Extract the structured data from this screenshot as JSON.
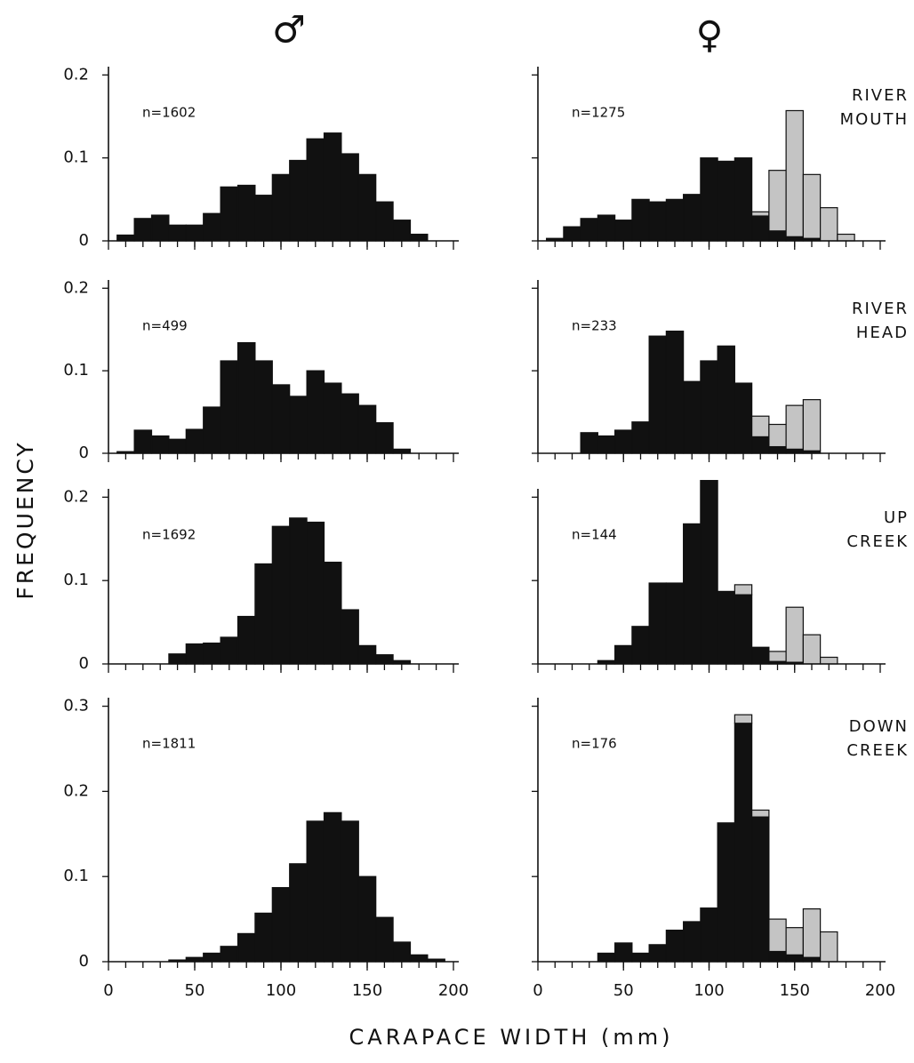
{
  "column_headers": [
    "♂",
    "♀"
  ],
  "row_labels": [
    [
      "RIVER",
      "MOUTH"
    ],
    [
      "RIVER",
      "HEAD"
    ],
    [
      "UP",
      "CREEK"
    ],
    [
      "DOWN",
      "CREEK"
    ]
  ],
  "y_label": "FREQUENCY",
  "x_label": "CARAPACE WIDTH (mm)",
  "chart_data": [
    {
      "type": "histogram",
      "annotation": "n=1602",
      "bins": [
        5,
        15,
        25,
        35,
        45,
        55,
        65,
        75,
        85,
        95,
        105,
        115,
        125,
        135,
        145,
        155,
        165,
        175,
        185
      ],
      "series": [
        {
          "color": "#111111",
          "values": [
            0.007,
            0.027,
            0.031,
            0.019,
            0.019,
            0.033,
            0.065,
            0.067,
            0.055,
            0.08,
            0.097,
            0.123,
            0.13,
            0.105,
            0.08,
            0.047,
            0.025,
            0.008
          ]
        }
      ],
      "xlim": [
        0,
        200
      ],
      "xticks": [
        0,
        50,
        100,
        150,
        200
      ],
      "ylim": [
        0,
        0.21
      ],
      "yticks": [
        0,
        0.1,
        0.2
      ]
    },
    {
      "type": "histogram",
      "annotation": "n=1275",
      "bins": [
        5,
        15,
        25,
        35,
        45,
        55,
        65,
        75,
        85,
        95,
        105,
        115,
        125,
        135,
        145,
        155,
        165,
        175,
        185
      ],
      "series": [
        {
          "color": "#111111",
          "values": [
            0.003,
            0.017,
            0.027,
            0.031,
            0.025,
            0.05,
            0.047,
            0.05,
            0.056,
            0.1,
            0.096,
            0.1,
            0.03,
            0.012,
            0.005,
            0.003,
            0,
            0
          ]
        },
        {
          "color": "#c4c4c4",
          "values": [
            0,
            0,
            0,
            0,
            0,
            0,
            0,
            0,
            0,
            0,
            0,
            0,
            0.005,
            0.073,
            0.152,
            0.077,
            0.04,
            0.008
          ]
        }
      ],
      "xlim": [
        0,
        200
      ],
      "xticks": [
        0,
        50,
        100,
        150,
        200
      ],
      "ylim": [
        0,
        0.21
      ],
      "yticks": [
        0,
        0.1,
        0.2
      ]
    },
    {
      "type": "histogram",
      "annotation": "n=499",
      "bins": [
        5,
        15,
        25,
        35,
        45,
        55,
        65,
        75,
        85,
        95,
        105,
        115,
        125,
        135,
        145,
        155,
        165,
        175
      ],
      "series": [
        {
          "color": "#111111",
          "values": [
            0.002,
            0.028,
            0.021,
            0.017,
            0.029,
            0.056,
            0.112,
            0.134,
            0.112,
            0.083,
            0.069,
            0.1,
            0.085,
            0.072,
            0.058,
            0.037,
            0.005
          ]
        }
      ],
      "xlim": [
        0,
        200
      ],
      "xticks": [
        0,
        50,
        100,
        150,
        200
      ],
      "ylim": [
        0,
        0.21
      ],
      "yticks": [
        0,
        0.1,
        0.2
      ]
    },
    {
      "type": "histogram",
      "annotation": "n=233",
      "bins": [
        25,
        35,
        45,
        55,
        65,
        75,
        85,
        95,
        105,
        115,
        125,
        135,
        145,
        155,
        165
      ],
      "series": [
        {
          "color": "#111111",
          "values": [
            0.025,
            0.021,
            0.028,
            0.038,
            0.142,
            0.148,
            0.087,
            0.112,
            0.13,
            0.085,
            0.02,
            0.008,
            0.005,
            0.003
          ]
        },
        {
          "color": "#c4c4c4",
          "values": [
            0,
            0,
            0,
            0,
            0,
            0,
            0,
            0,
            0,
            0,
            0.025,
            0.027,
            0.053,
            0.062
          ]
        }
      ],
      "xlim": [
        0,
        200
      ],
      "xticks": [
        0,
        50,
        100,
        150,
        200
      ],
      "ylim": [
        0,
        0.21
      ],
      "yticks": [
        0,
        0.1,
        0.2
      ]
    },
    {
      "type": "histogram",
      "annotation": "n=1692",
      "bins": [
        35,
        45,
        55,
        65,
        75,
        85,
        95,
        105,
        115,
        125,
        135,
        145,
        155,
        165,
        175
      ],
      "series": [
        {
          "color": "#111111",
          "values": [
            0.012,
            0.024,
            0.025,
            0.032,
            0.057,
            0.12,
            0.165,
            0.175,
            0.17,
            0.122,
            0.065,
            0.022,
            0.011,
            0.004
          ]
        }
      ],
      "xlim": [
        0,
        200
      ],
      "xticks": [
        0,
        50,
        100,
        150,
        200
      ],
      "ylim": [
        0,
        0.21
      ],
      "yticks": [
        0,
        0.1,
        0.2
      ]
    },
    {
      "type": "histogram",
      "annotation": "n=144",
      "bins": [
        35,
        45,
        55,
        65,
        75,
        85,
        95,
        105,
        115,
        125,
        135,
        145,
        155,
        165,
        175
      ],
      "series": [
        {
          "color": "#111111",
          "values": [
            0.004,
            0.022,
            0.045,
            0.097,
            0.097,
            0.168,
            0.22,
            0.087,
            0.083,
            0.02,
            0.003,
            0.002,
            0,
            0
          ]
        },
        {
          "color": "#c4c4c4",
          "values": [
            0,
            0,
            0,
            0,
            0,
            0,
            0,
            0,
            0.012,
            0,
            0.012,
            0.066,
            0.035,
            0.008
          ]
        }
      ],
      "xlim": [
        0,
        200
      ],
      "xticks": [
        0,
        50,
        100,
        150,
        200
      ],
      "ylim": [
        0,
        0.21
      ],
      "yticks": [
        0,
        0.1,
        0.2
      ]
    },
    {
      "type": "histogram",
      "annotation": "n=1811",
      "bins": [
        35,
        45,
        55,
        65,
        75,
        85,
        95,
        105,
        115,
        125,
        135,
        145,
        155,
        165,
        175,
        185,
        195
      ],
      "series": [
        {
          "color": "#111111",
          "values": [
            0.002,
            0.005,
            0.01,
            0.018,
            0.033,
            0.057,
            0.087,
            0.115,
            0.165,
            0.175,
            0.165,
            0.1,
            0.052,
            0.023,
            0.008,
            0.003
          ]
        }
      ],
      "xlim": [
        0,
        200
      ],
      "xticks": [
        0,
        50,
        100,
        150,
        200
      ],
      "ylim": [
        0,
        0.31
      ],
      "yticks": [
        0,
        0.1,
        0.2,
        0.3
      ]
    },
    {
      "type": "histogram",
      "annotation": "n=176",
      "bins": [
        35,
        45,
        55,
        65,
        75,
        85,
        95,
        105,
        115,
        125,
        135,
        145,
        155,
        165,
        175
      ],
      "series": [
        {
          "color": "#111111",
          "values": [
            0.01,
            0.022,
            0.01,
            0.02,
            0.037,
            0.047,
            0.063,
            0.163,
            0.28,
            0.17,
            0.012,
            0.008,
            0.005,
            0
          ]
        },
        {
          "color": "#c4c4c4",
          "values": [
            0,
            0,
            0,
            0,
            0,
            0,
            0,
            0,
            0.01,
            0.008,
            0.038,
            0.032,
            0.057,
            0.035
          ]
        }
      ],
      "xlim": [
        0,
        200
      ],
      "xticks": [
        0,
        50,
        100,
        150,
        200
      ],
      "ylim": [
        0,
        0.31
      ],
      "yticks": [
        0,
        0.1,
        0.2,
        0.3
      ]
    }
  ]
}
